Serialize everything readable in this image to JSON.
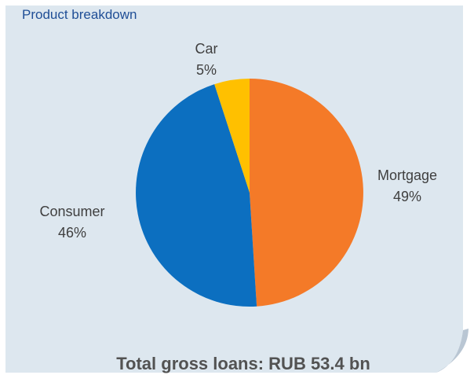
{
  "title": "Product breakdown",
  "footer": "Total gross loans: RUB 53.4 bn",
  "colors": {
    "panel": "#dde7ef",
    "title": "#1f4e96",
    "footer": "#525252",
    "label": "#3f3f3f"
  },
  "chart_data": {
    "type": "pie",
    "start_angle_deg": 0,
    "direction": "clockwise",
    "slices": [
      {
        "label": "Mortgage",
        "value": 49,
        "display": "49%",
        "color": "#f47a28"
      },
      {
        "label": "Consumer",
        "value": 46,
        "display": "46%",
        "color": "#0c6fc0"
      },
      {
        "label": "Car",
        "value": 5,
        "display": "5%",
        "color": "#ffc000"
      }
    ]
  }
}
